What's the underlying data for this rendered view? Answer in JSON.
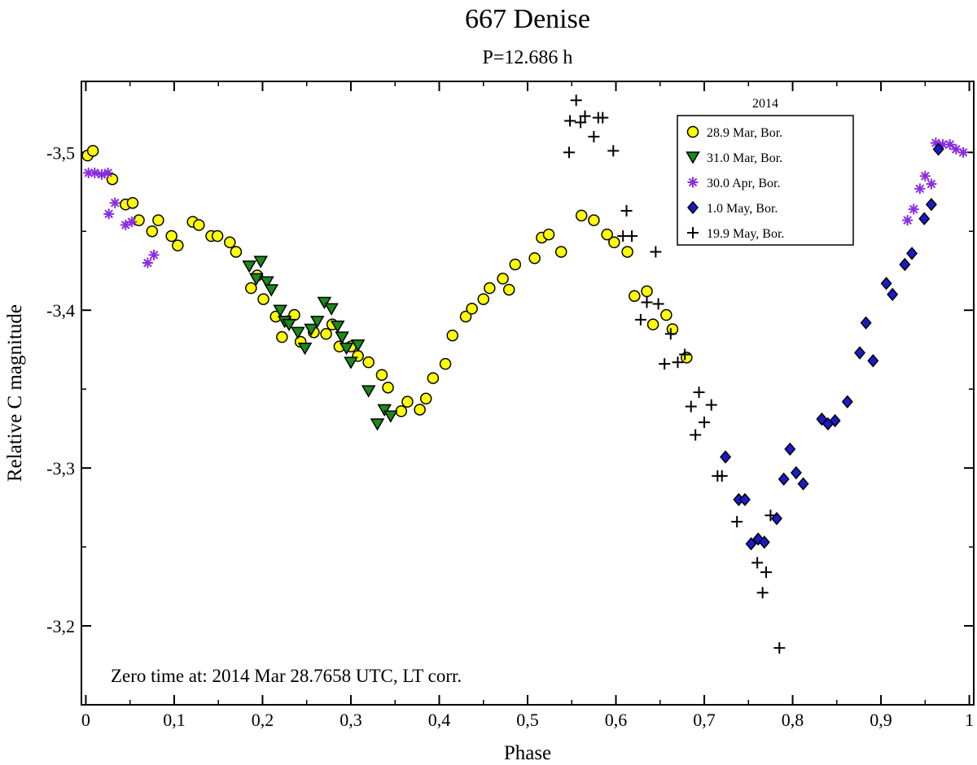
{
  "chart_data": {
    "type": "scatter",
    "title": "667 Denise",
    "subtitle": "P=12.686 h",
    "xlabel": "Phase",
    "ylabel": "Relative C magnitude",
    "xlim": [
      -0.005,
      1.005
    ],
    "ylim": [
      -3.545,
      -3.15
    ],
    "y_inverted": true,
    "x_ticks": [
      0,
      0.1,
      0.2,
      0.3,
      0.4,
      0.5,
      0.6,
      0.7,
      0.8,
      0.9,
      1
    ],
    "x_tick_labels": [
      "0",
      "0,1",
      "0,2",
      "0,3",
      "0,4",
      "0,5",
      "0,6",
      "0,7",
      "0,8",
      "0,9",
      "1"
    ],
    "y_ticks": [
      -3.5,
      -3.4,
      -3.3,
      -3.2
    ],
    "y_tick_labels": [
      "-3,5",
      "-3,4",
      "-3,3",
      "-3,2"
    ],
    "legend_title": "2014",
    "legend_position": "top-right",
    "annotation": "Zero time at: 2014 Mar 28.7658 UTC, LT corr.",
    "series": [
      {
        "name": "28.9 Mar, Bor.",
        "marker": "circle",
        "color": "#ffff00",
        "stroke": "#000000",
        "points": [
          [
            0.002,
            -3.498
          ],
          [
            0.008,
            -3.501
          ],
          [
            0.03,
            -3.483
          ],
          [
            0.045,
            -3.467
          ],
          [
            0.053,
            -3.468
          ],
          [
            0.06,
            -3.457
          ],
          [
            0.075,
            -3.45
          ],
          [
            0.082,
            -3.457
          ],
          [
            0.097,
            -3.447
          ],
          [
            0.104,
            -3.441
          ],
          [
            0.121,
            -3.456
          ],
          [
            0.128,
            -3.454
          ],
          [
            0.142,
            -3.447
          ],
          [
            0.149,
            -3.447
          ],
          [
            0.163,
            -3.443
          ],
          [
            0.17,
            -3.437
          ],
          [
            0.187,
            -3.414
          ],
          [
            0.194,
            -3.422
          ],
          [
            0.201,
            -3.407
          ],
          [
            0.215,
            -3.396
          ],
          [
            0.222,
            -3.383
          ],
          [
            0.229,
            -3.393
          ],
          [
            0.236,
            -3.397
          ],
          [
            0.243,
            -3.38
          ],
          [
            0.258,
            -3.386
          ],
          [
            0.272,
            -3.385
          ],
          [
            0.279,
            -3.391
          ],
          [
            0.287,
            -3.377
          ],
          [
            0.3,
            -3.377
          ],
          [
            0.308,
            -3.371
          ],
          [
            0.32,
            -3.367
          ],
          [
            0.335,
            -3.359
          ],
          [
            0.342,
            -3.351
          ],
          [
            0.357,
            -3.336
          ],
          [
            0.364,
            -3.342
          ],
          [
            0.378,
            -3.337
          ],
          [
            0.385,
            -3.344
          ],
          [
            0.393,
            -3.357
          ],
          [
            0.407,
            -3.366
          ],
          [
            0.415,
            -3.384
          ],
          [
            0.43,
            -3.396
          ],
          [
            0.437,
            -3.401
          ],
          [
            0.45,
            -3.407
          ],
          [
            0.457,
            -3.414
          ],
          [
            0.472,
            -3.42
          ],
          [
            0.479,
            -3.413
          ],
          [
            0.486,
            -3.429
          ],
          [
            0.508,
            -3.433
          ],
          [
            0.516,
            -3.446
          ],
          [
            0.524,
            -3.448
          ],
          [
            0.538,
            -3.437
          ],
          [
            0.561,
            -3.46
          ],
          [
            0.575,
            -3.457
          ],
          [
            0.59,
            -3.448
          ],
          [
            0.598,
            -3.443
          ],
          [
            0.613,
            -3.437
          ],
          [
            0.621,
            -3.409
          ],
          [
            0.635,
            -3.412
          ],
          [
            0.642,
            -3.391
          ],
          [
            0.657,
            -3.397
          ],
          [
            0.664,
            -3.388
          ],
          [
            0.68,
            -3.37
          ]
        ]
      },
      {
        "name": "31.0 Mar, Bor.",
        "marker": "triangle-down",
        "color": "#1a8a1a",
        "stroke": "#000000",
        "points": [
          [
            0.185,
            -3.428
          ],
          [
            0.193,
            -3.42
          ],
          [
            0.198,
            -3.431
          ],
          [
            0.205,
            -3.418
          ],
          [
            0.21,
            -3.413
          ],
          [
            0.22,
            -3.4
          ],
          [
            0.225,
            -3.393
          ],
          [
            0.23,
            -3.391
          ],
          [
            0.24,
            -3.386
          ],
          [
            0.248,
            -3.376
          ],
          [
            0.255,
            -3.388
          ],
          [
            0.262,
            -3.393
          ],
          [
            0.27,
            -3.405
          ],
          [
            0.278,
            -3.401
          ],
          [
            0.285,
            -3.39
          ],
          [
            0.29,
            -3.383
          ],
          [
            0.295,
            -3.376
          ],
          [
            0.3,
            -3.367
          ],
          [
            0.308,
            -3.378
          ],
          [
            0.32,
            -3.349
          ],
          [
            0.33,
            -3.328
          ],
          [
            0.338,
            -3.337
          ],
          [
            0.345,
            -3.333
          ]
        ]
      },
      {
        "name": "30.0 Apr, Bor.",
        "marker": "asterisk",
        "color": "#8a2be2",
        "stroke": "#8a2be2",
        "points": [
          [
            0.003,
            -3.487
          ],
          [
            0.01,
            -3.487
          ],
          [
            0.018,
            -3.486
          ],
          [
            0.025,
            -3.487
          ],
          [
            0.026,
            -3.461
          ],
          [
            0.033,
            -3.468
          ],
          [
            0.045,
            -3.454
          ],
          [
            0.052,
            -3.456
          ],
          [
            0.07,
            -3.43
          ],
          [
            0.077,
            -3.435
          ],
          [
            0.93,
            -3.457
          ],
          [
            0.937,
            -3.464
          ],
          [
            0.944,
            -3.477
          ],
          [
            0.95,
            -3.485
          ],
          [
            0.957,
            -3.48
          ],
          [
            0.962,
            -3.506
          ],
          [
            0.97,
            -3.505
          ],
          [
            0.978,
            -3.505
          ],
          [
            0.985,
            -3.502
          ],
          [
            0.993,
            -3.5
          ]
        ]
      },
      {
        "name": "1.0 May, Bor.",
        "marker": "diamond",
        "color": "#1a1acc",
        "stroke": "#000000",
        "points": [
          [
            0.724,
            -3.307
          ],
          [
            0.739,
            -3.28
          ],
          [
            0.746,
            -3.28
          ],
          [
            0.753,
            -3.252
          ],
          [
            0.761,
            -3.255
          ],
          [
            0.768,
            -3.253
          ],
          [
            0.782,
            -3.268
          ],
          [
            0.79,
            -3.293
          ],
          [
            0.797,
            -3.312
          ],
          [
            0.804,
            -3.297
          ],
          [
            0.812,
            -3.29
          ],
          [
            0.833,
            -3.331
          ],
          [
            0.84,
            -3.328
          ],
          [
            0.848,
            -3.33
          ],
          [
            0.862,
            -3.342
          ],
          [
            0.876,
            -3.373
          ],
          [
            0.883,
            -3.392
          ],
          [
            0.891,
            -3.368
          ],
          [
            0.906,
            -3.417
          ],
          [
            0.913,
            -3.41
          ],
          [
            0.927,
            -3.429
          ],
          [
            0.935,
            -3.436
          ],
          [
            0.949,
            -3.458
          ],
          [
            0.957,
            -3.467
          ],
          [
            0.965,
            -3.502
          ]
        ]
      },
      {
        "name": "19.9 May, Bor.",
        "marker": "plus",
        "color": "#000000",
        "stroke": "#000000",
        "points": [
          [
            0.547,
            -3.5
          ],
          [
            0.548,
            -3.52
          ],
          [
            0.555,
            -3.533
          ],
          [
            0.56,
            -3.519
          ],
          [
            0.565,
            -3.523
          ],
          [
            0.575,
            -3.51
          ],
          [
            0.58,
            -3.522
          ],
          [
            0.585,
            -3.522
          ],
          [
            0.597,
            -3.501
          ],
          [
            0.608,
            -3.447
          ],
          [
            0.612,
            -3.463
          ],
          [
            0.618,
            -3.447
          ],
          [
            0.628,
            -3.394
          ],
          [
            0.635,
            -3.405
          ],
          [
            0.645,
            -3.437
          ],
          [
            0.648,
            -3.404
          ],
          [
            0.655,
            -3.366
          ],
          [
            0.662,
            -3.385
          ],
          [
            0.67,
            -3.367
          ],
          [
            0.678,
            -3.372
          ],
          [
            0.685,
            -3.339
          ],
          [
            0.69,
            -3.321
          ],
          [
            0.694,
            -3.348
          ],
          [
            0.7,
            -3.329
          ],
          [
            0.708,
            -3.34
          ],
          [
            0.715,
            -3.295
          ],
          [
            0.72,
            -3.295
          ],
          [
            0.737,
            -3.266
          ],
          [
            0.76,
            -3.24
          ],
          [
            0.766,
            -3.221
          ],
          [
            0.77,
            -3.234
          ],
          [
            0.775,
            -3.27
          ],
          [
            0.785,
            -3.186
          ]
        ]
      }
    ]
  }
}
